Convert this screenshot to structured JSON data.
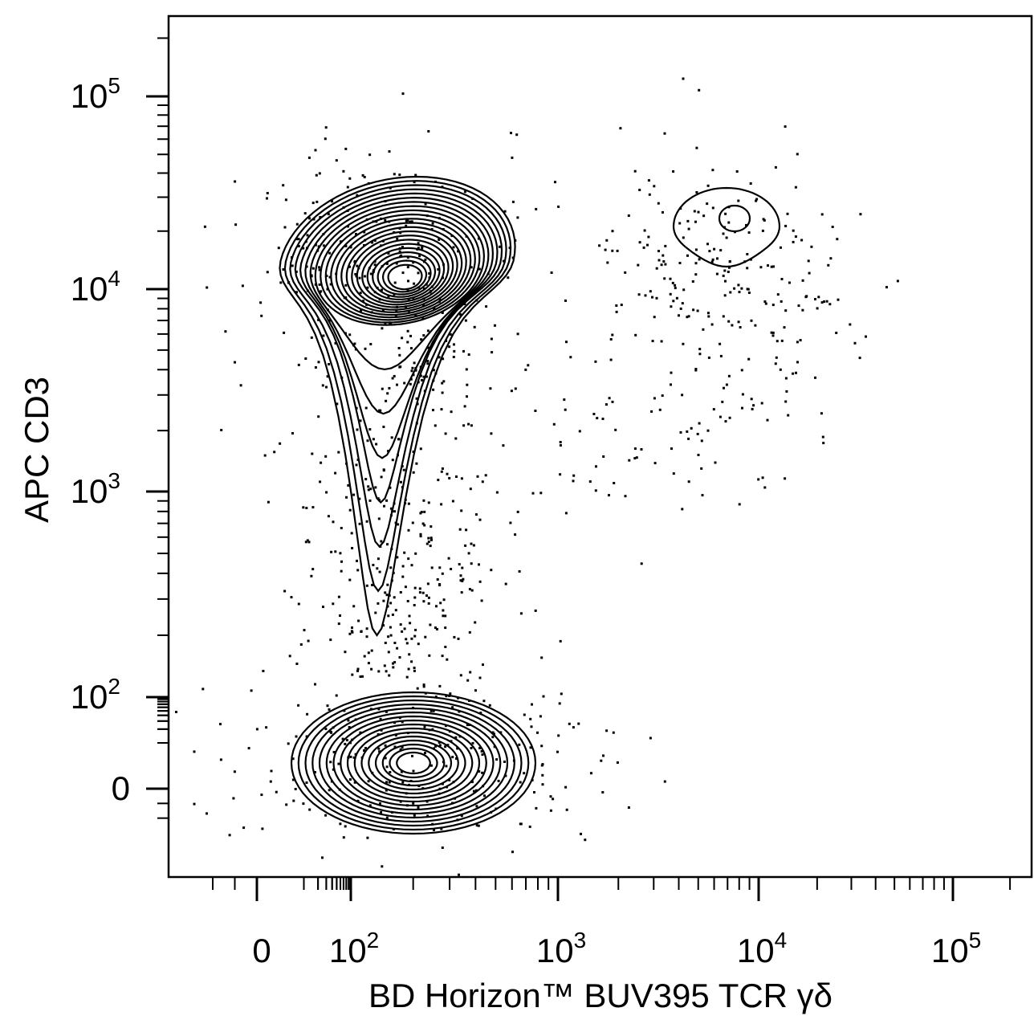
{
  "chart_data": {
    "type": "contour",
    "title": "",
    "xlabel": "BD Horizon™ BUV395 TCR γδ",
    "ylabel": "APC CD3",
    "x_scale": "biexponential",
    "y_scale": "biexponential",
    "x_ticks": [
      {
        "value": 0,
        "base": "0",
        "exp": ""
      },
      {
        "value": 100,
        "base": "10",
        "exp": "2"
      },
      {
        "value": 1000,
        "base": "10",
        "exp": "3"
      },
      {
        "value": 10000,
        "base": "10",
        "exp": "4"
      },
      {
        "value": 100000,
        "base": "10",
        "exp": "5"
      }
    ],
    "y_ticks": [
      {
        "value": 0,
        "base": "0",
        "exp": ""
      },
      {
        "value": 100,
        "base": "10",
        "exp": "2"
      },
      {
        "value": 1000,
        "base": "10",
        "exp": "3"
      },
      {
        "value": 10000,
        "base": "10",
        "exp": "4"
      },
      {
        "value": 100000,
        "base": "10",
        "exp": "5"
      }
    ],
    "populations": [
      {
        "x_center": 200,
        "y_center": 11000,
        "density": "high"
      },
      {
        "x_center": 210,
        "y_center": 10,
        "density": "high"
      },
      {
        "x_center": 7500,
        "y_center": 24000,
        "density": "low"
      }
    ],
    "grid": false,
    "line_color": "#000000"
  }
}
